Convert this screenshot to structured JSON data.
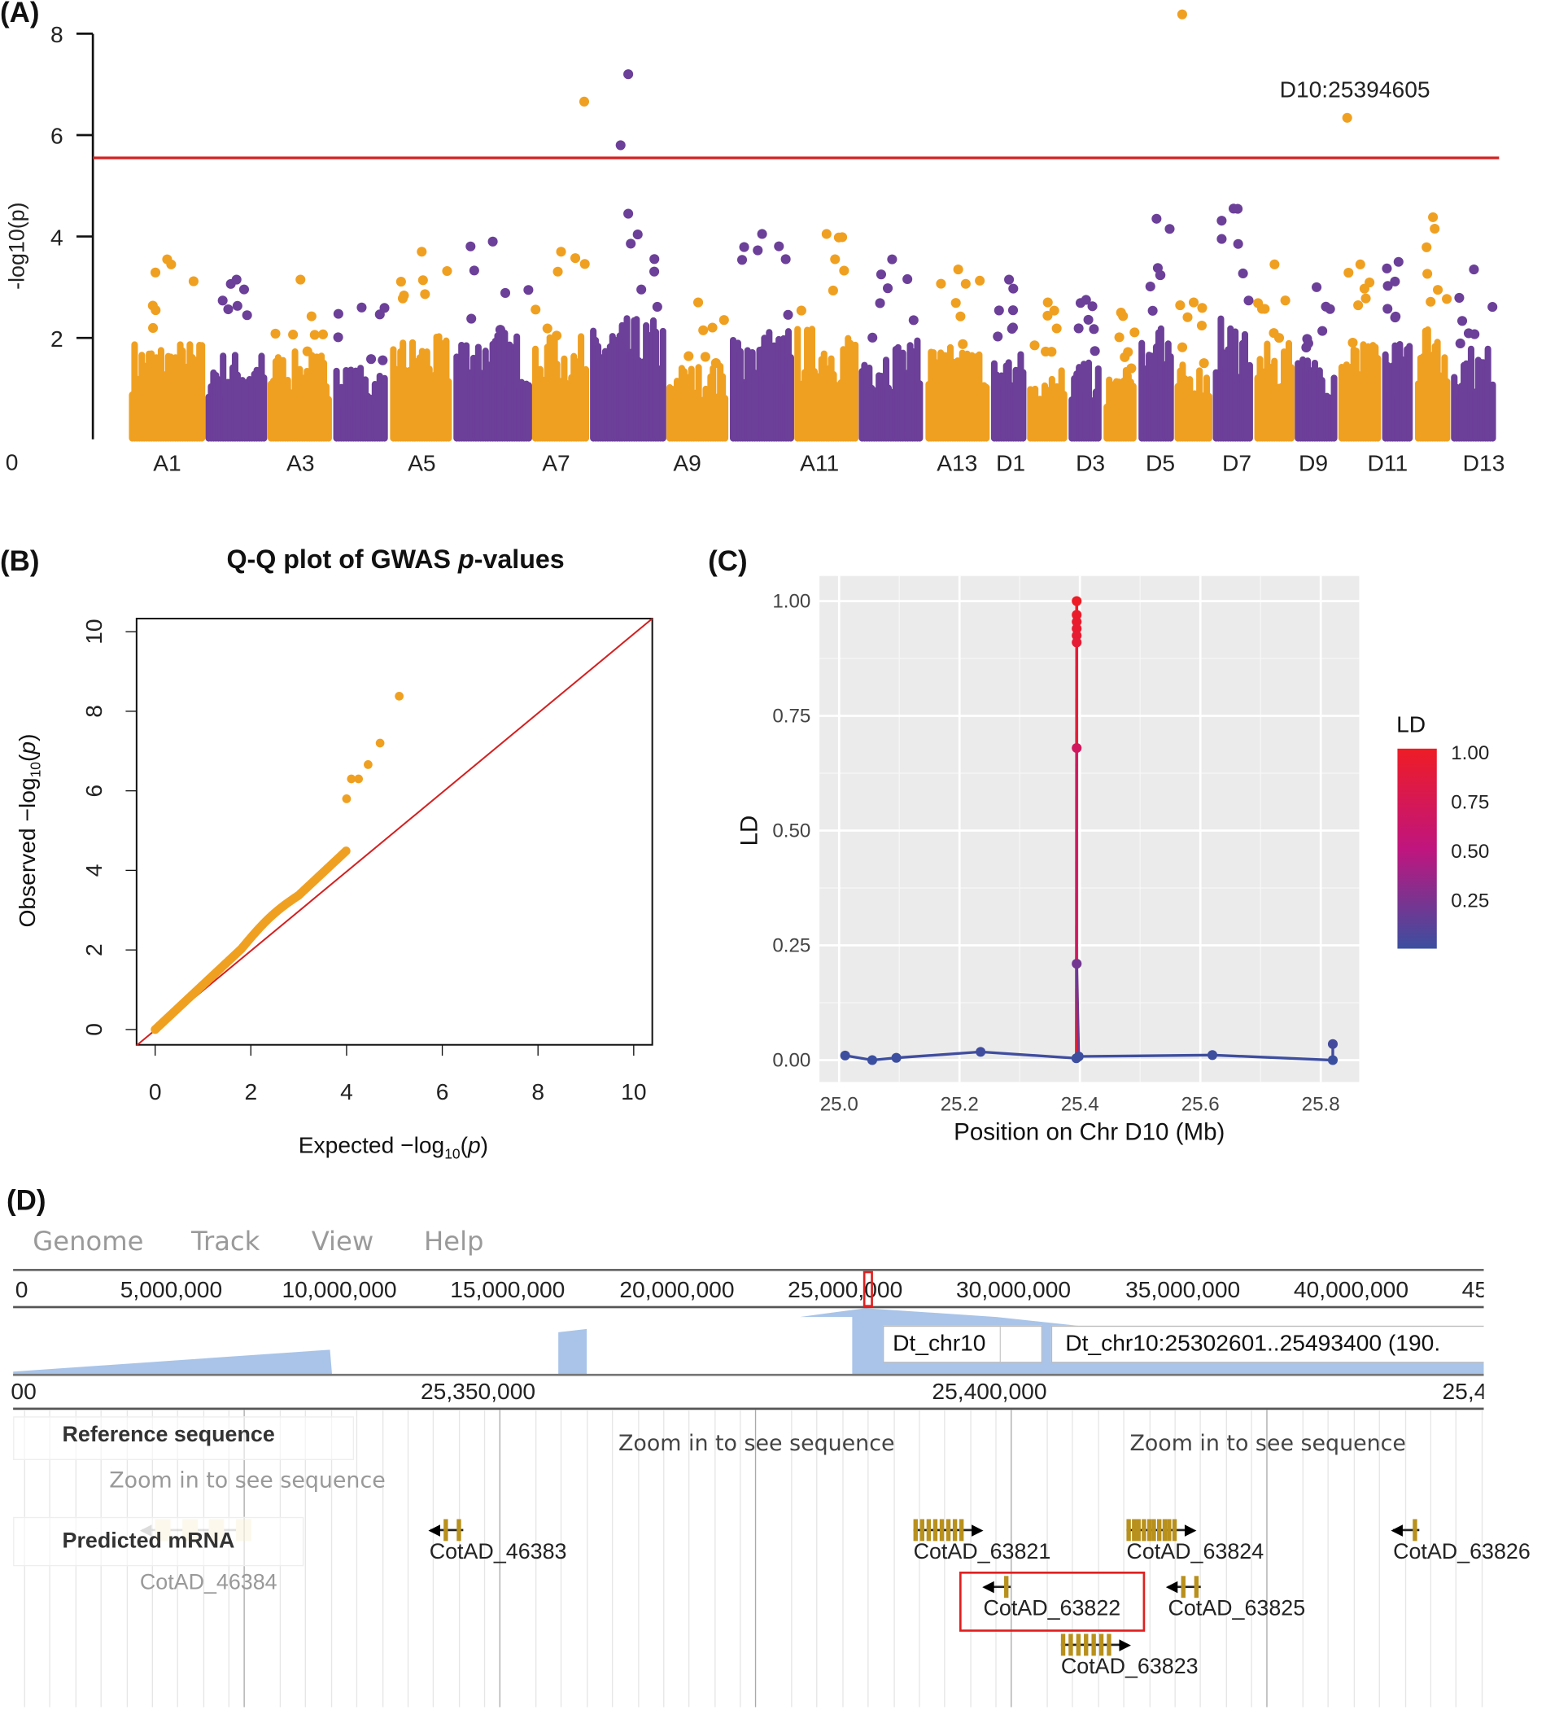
{
  "panels": {
    "a": "(A)",
    "b": "(B)",
    "c": "(C)",
    "d": "(D)"
  },
  "chart_data": [
    {
      "type": "scatter",
      "subtype": "manhattan",
      "ylabel": "-log10(p)",
      "ylim": [
        0,
        8
      ],
      "yticks": [
        "0",
        "2",
        "4",
        "6",
        "8"
      ],
      "xtick_labels": [
        "A1",
        "A3",
        "A5",
        "A7",
        "A9",
        "A11",
        "A13",
        "D1",
        "D3",
        "D5",
        "D7",
        "D9",
        "D11",
        "D13"
      ],
      "chromosomes": [
        "A1",
        "A2",
        "A3",
        "A4",
        "A5",
        "A6",
        "A7",
        "A8",
        "A9",
        "A10",
        "A11",
        "A12",
        "A13",
        "D1",
        "D2",
        "D3",
        "D4",
        "D5",
        "D6",
        "D7",
        "D8",
        "D9",
        "D10",
        "D11",
        "D12",
        "D13"
      ],
      "colors": {
        "odd": "#f0a020",
        "even": "#6c3f99",
        "threshold": "#d42020"
      },
      "threshold": 5.55,
      "approx_max_nonsignificant": [
        3.55,
        3.15,
        3.15,
        2.6,
        3.7,
        3.9,
        3.7,
        4.45,
        2.7,
        4.05,
        4.05,
        3.55,
        3.35,
        3.15,
        2.7,
        2.75,
        2.5,
        4.35,
        2.7,
        4.55,
        3.45,
        3.0,
        3.45,
        3.5,
        4.38,
        3.35
      ],
      "significant_hits": [
        {
          "chr": "A7",
          "value": 6.66
        },
        {
          "chr": "A8",
          "value": 7.2
        },
        {
          "chr": "A8",
          "value": 5.8
        },
        {
          "chr": "D6",
          "value": 8.38
        },
        {
          "chr": "D10",
          "value": 6.34,
          "label": "D10:25394605"
        }
      ]
    },
    {
      "type": "scatter",
      "subtype": "qq",
      "title": "Q-Q plot of GWAS p-values",
      "xlabel": "Expected -log10(p)",
      "ylabel": "Observed -log10(p)",
      "xlim": [
        0,
        10
      ],
      "ylim": [
        0,
        10
      ],
      "ticks": [
        "0",
        "2",
        "4",
        "6",
        "8",
        "10"
      ],
      "point_color": "#f0a020",
      "line_color": "#d42020",
      "bulk_trend": {
        "expected_max": 4.0,
        "observed_max": 4.5
      },
      "outliers": [
        [
          4.0,
          5.8
        ],
        [
          4.1,
          6.3
        ],
        [
          4.25,
          6.3
        ],
        [
          4.45,
          6.66
        ],
        [
          4.7,
          7.2
        ],
        [
          5.1,
          8.38
        ]
      ]
    },
    {
      "type": "line",
      "xlabel": "Position on Chr D10 (Mb)",
      "ylabel": "LD",
      "xlim": [
        24.97,
        25.87
      ],
      "ylim": [
        -0.03,
        1.03
      ],
      "xticks": [
        "25.0",
        "25.2",
        "25.4",
        "25.6",
        "25.8"
      ],
      "yticks": [
        "0.00",
        "0.25",
        "0.50",
        "0.75",
        "1.00"
      ],
      "grid": true,
      "legend": {
        "title": "LD",
        "labels": [
          "1.00",
          "0.75",
          "0.50",
          "0.25"
        ],
        "low_color": "#3b4fa0",
        "mid_color": "#c0157e",
        "high_color": "#ee1c25",
        "placement": "right"
      },
      "points": [
        [
          25.01,
          0.01
        ],
        [
          25.055,
          0.0
        ],
        [
          25.095,
          0.005
        ],
        [
          25.235,
          0.018
        ],
        [
          25.394,
          0.004
        ],
        [
          25.3946,
          1.0
        ],
        [
          25.3946,
          0.97
        ],
        [
          25.3946,
          0.955
        ],
        [
          25.3946,
          0.94
        ],
        [
          25.3946,
          0.925
        ],
        [
          25.3946,
          0.91
        ],
        [
          25.3946,
          0.68
        ],
        [
          25.3946,
          0.21
        ],
        [
          25.398,
          0.008
        ],
        [
          25.62,
          0.011
        ],
        [
          25.82,
          0.0
        ],
        [
          25.82,
          0.035
        ]
      ]
    }
  ],
  "browser": {
    "menu": [
      "Genome",
      "Track",
      "View",
      "Help"
    ],
    "overview_ticks": [
      "0",
      "5,000,000",
      "10,000,000",
      "15,000,000",
      "20,000,000",
      "25,000,000",
      "30,000,000",
      "35,000,000",
      "40,000,000",
      "45"
    ],
    "chrom": "Dt_chr10",
    "location": "Dt_chr10:25302601..25493400 (190.",
    "detail_ticks": [
      "00",
      "25,350,000",
      "25,400,000",
      "25,4"
    ],
    "reference_track": "Reference sequence",
    "zoom_msg": "Zoom in to see sequence",
    "mrna_track": "Predicted mRNA",
    "genes": [
      "CotAD_46384",
      "CotAD_46383",
      "CotAD_63821",
      "CotAD_63824",
      "CotAD_63826",
      "CotAD_63822",
      "CotAD_63825",
      "CotAD_63823"
    ],
    "highlight_color": "#e02020",
    "feature_color": "#b8901c",
    "coverage_color": "#a9c4e8"
  }
}
